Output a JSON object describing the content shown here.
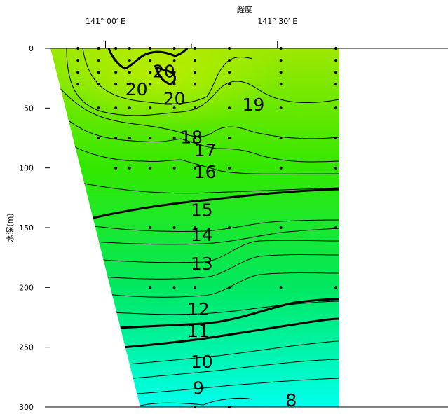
{
  "chart_data": {
    "type": "heatmap",
    "subtype": "vertical section contour (water temperature)",
    "xlabel": "経度",
    "ylabel": "水深(m)",
    "x_ticks": [
      {
        "lon": 141.0,
        "label": "141° 00′ E"
      },
      {
        "lon": 141.5,
        "label": "141° 30′ E"
      }
    ],
    "xlim": [
      140.84,
      141.68
    ],
    "ylim": [
      0,
      300
    ],
    "y_ticks": [
      {
        "value": 0,
        "label": "0"
      },
      {
        "value": 50,
        "label": "50"
      },
      {
        "value": 100,
        "label": "100"
      },
      {
        "value": 150,
        "label": "150"
      },
      {
        "value": 200,
        "label": "200"
      },
      {
        "value": 250,
        "label": "250"
      },
      {
        "value": 300,
        "label": "300"
      }
    ],
    "color_scale": [
      {
        "value": 8,
        "color": "#00ffee"
      },
      {
        "value": 12,
        "color": "#00e860"
      },
      {
        "value": 16,
        "color": "#33e800"
      },
      {
        "value": 20,
        "color": "#9ee800"
      }
    ],
    "contour_labels": [
      {
        "value": "20",
        "lon": 141.17,
        "depth": 19
      },
      {
        "value": "20",
        "lon": 141.09,
        "depth": 34
      },
      {
        "value": "20",
        "lon": 141.2,
        "depth": 42
      },
      {
        "value": "19",
        "lon": 141.43,
        "depth": 47
      },
      {
        "value": "18",
        "lon": 141.25,
        "depth": 74
      },
      {
        "value": "17",
        "lon": 141.29,
        "depth": 85
      },
      {
        "value": "16",
        "lon": 141.29,
        "depth": 103
      },
      {
        "value": "15",
        "lon": 141.28,
        "depth": 135
      },
      {
        "value": "14",
        "lon": 141.28,
        "depth": 156
      },
      {
        "value": "13",
        "lon": 141.28,
        "depth": 180
      },
      {
        "value": "12",
        "lon": 141.27,
        "depth": 218
      },
      {
        "value": "11",
        "lon": 141.27,
        "depth": 236
      },
      {
        "value": "10",
        "lon": 141.28,
        "depth": 262
      },
      {
        "value": "9",
        "lon": 141.27,
        "depth": 284
      },
      {
        "value": "8",
        "lon": 141.54,
        "depth": 294
      }
    ],
    "stations": [
      {
        "lon": 140.92,
        "depths": [
          0,
          10,
          20,
          30
        ]
      },
      {
        "lon": 140.98,
        "depths": [
          0,
          10,
          20,
          30,
          50,
          75
        ]
      },
      {
        "lon": 141.03,
        "depths": [
          0,
          10,
          20,
          30,
          50,
          75,
          100
        ]
      },
      {
        "lon": 141.07,
        "depths": [
          0,
          10,
          20,
          30,
          50,
          75,
          100
        ]
      },
      {
        "lon": 141.13,
        "depths": [
          0,
          10,
          20,
          30,
          50,
          75,
          100,
          150,
          200
        ]
      },
      {
        "lon": 141.2,
        "depths": [
          0,
          10,
          20,
          30,
          50,
          75,
          100,
          150,
          200
        ]
      },
      {
        "lon": 141.26,
        "depths": [
          0,
          10,
          20,
          30,
          50,
          75,
          100,
          150,
          200,
          300
        ]
      },
      {
        "lon": 141.36,
        "depths": [
          0,
          10,
          20,
          30,
          50,
          75,
          100,
          150,
          200,
          300
        ]
      },
      {
        "lon": 141.51,
        "depths": [
          0,
          10,
          20,
          30,
          50,
          75,
          100,
          150,
          200
        ]
      },
      {
        "lon": 141.67,
        "depths": [
          0,
          10,
          20,
          30,
          50,
          75,
          100,
          150,
          200
        ]
      }
    ]
  }
}
